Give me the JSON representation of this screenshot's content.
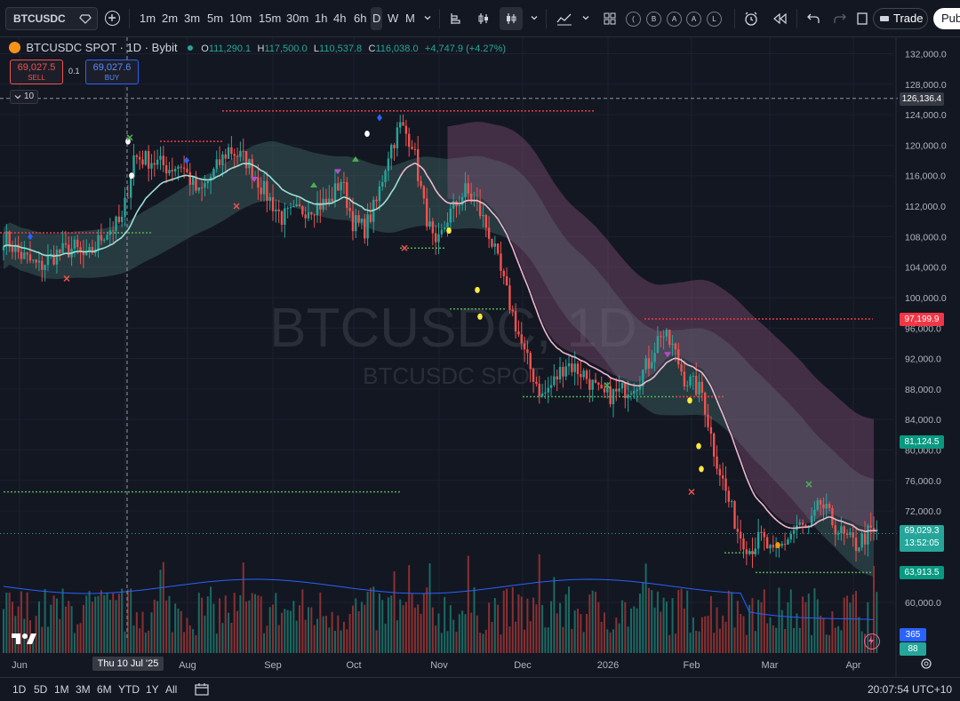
{
  "toolbar": {
    "symbol": "BTCUSDC",
    "intervals": [
      "1m",
      "2m",
      "3m",
      "5m",
      "10m",
      "15m",
      "30m",
      "1h",
      "4h",
      "6h",
      "D",
      "W",
      "M"
    ],
    "active_interval": "D",
    "circle_buttons": [
      "(",
      "B",
      "A",
      "A",
      "L"
    ],
    "trade_label": "Trade",
    "publish_label": "Pub"
  },
  "legend": {
    "title": "BTCUSDC SPOT · 1D · Bybit",
    "o_label": "O",
    "o": "111,290.1",
    "h_label": "H",
    "h": "117,500.0",
    "l_label": "L",
    "l": "110,537.8",
    "c_label": "C",
    "c": "116,038.0",
    "change": "+4,747.9 (+4.27%)",
    "sell_price": "69,027.5",
    "sell_label": "SELL",
    "spread": "0.1",
    "buy_price": "69,027.6",
    "buy_label": "BUY",
    "indicator_count": "10"
  },
  "watermark": {
    "main": "BTCUSDC, 1D",
    "sub": "BTCUSDC SPOT"
  },
  "price_labels": {
    "crosshair": "126,136.4",
    "red_level": "97,199.9",
    "green_level": "81,124.5",
    "last_price": "69,029.3",
    "countdown": "13:52:05",
    "low_level": "63,913.5",
    "vol_ma": "365",
    "vol": "88"
  },
  "crosshair_date": "Thu 10 Jul '25",
  "bottom": {
    "ranges": [
      "1D",
      "5D",
      "1M",
      "3M",
      "6M",
      "YTD",
      "1Y",
      "All"
    ],
    "clock": "20:07:54 UTC+10"
  },
  "colors": {
    "up": "#26a69a",
    "down": "#ef5350",
    "accent": "#2962ff",
    "ema": "#f3b8d0",
    "ema_up": "#9fe3d8"
  },
  "chart_data": {
    "type": "candlestick",
    "x_ticks": [
      "Jun",
      "Jul",
      "Aug",
      "Sep",
      "Oct",
      "Nov",
      "Dec",
      "2026",
      "Feb",
      "Mar",
      "Apr"
    ],
    "y_ticks": [
      132000,
      128000,
      124000,
      120000,
      116000,
      112000,
      108000,
      104000,
      100000,
      96000,
      92000,
      88000,
      84000,
      80000,
      76000,
      72000,
      60000
    ],
    "ylim": [
      55000,
      133000
    ],
    "anchors": [
      [
        0,
        108000
      ],
      [
        6,
        105500
      ],
      [
        12,
        104000
      ],
      [
        18,
        105800
      ],
      [
        24,
        106500
      ],
      [
        28,
        105000
      ],
      [
        34,
        108500
      ],
      [
        40,
        110000
      ],
      [
        44,
        118500
      ],
      [
        50,
        118000
      ],
      [
        56,
        117000
      ],
      [
        60,
        117500
      ],
      [
        66,
        113500
      ],
      [
        72,
        117000
      ],
      [
        76,
        119500
      ],
      [
        82,
        118000
      ],
      [
        88,
        114000
      ],
      [
        94,
        110500
      ],
      [
        98,
        111000
      ],
      [
        104,
        112000
      ],
      [
        110,
        112500
      ],
      [
        114,
        115500
      ],
      [
        118,
        110000
      ],
      [
        122,
        109000
      ],
      [
        126,
        112500
      ],
      [
        130,
        119000
      ],
      [
        134,
        122500
      ],
      [
        138,
        120500
      ],
      [
        142,
        112000
      ],
      [
        146,
        106000
      ],
      [
        150,
        110500
      ],
      [
        156,
        114000
      ],
      [
        160,
        112000
      ],
      [
        164,
        108500
      ],
      [
        170,
        100500
      ],
      [
        176,
        92500
      ],
      [
        182,
        87000
      ],
      [
        186,
        89000
      ],
      [
        190,
        91500
      ],
      [
        196,
        90000
      ],
      [
        202,
        87000
      ],
      [
        208,
        87500
      ],
      [
        214,
        89000
      ],
      [
        218,
        91500
      ],
      [
        222,
        95500
      ],
      [
        226,
        93500
      ],
      [
        230,
        89500
      ],
      [
        236,
        87500
      ],
      [
        240,
        80000
      ],
      [
        244,
        74500
      ],
      [
        248,
        69500
      ],
      [
        252,
        67000
      ],
      [
        256,
        68500
      ],
      [
        260,
        66000
      ],
      [
        264,
        68000
      ],
      [
        268,
        70000
      ],
      [
        272,
        69500
      ],
      [
        276,
        73000
      ],
      [
        280,
        70500
      ],
      [
        284,
        68500
      ],
      [
        288,
        67500
      ],
      [
        292,
        69000
      ]
    ],
    "levels": {
      "crosshair": 126136.4,
      "red": 97199.9,
      "green": 81124.5,
      "last": 69029.3,
      "low": 63913.5,
      "red_early": 124500,
      "red_early2": 120500,
      "green_early": 108500,
      "green_early2": 74500
    }
  }
}
